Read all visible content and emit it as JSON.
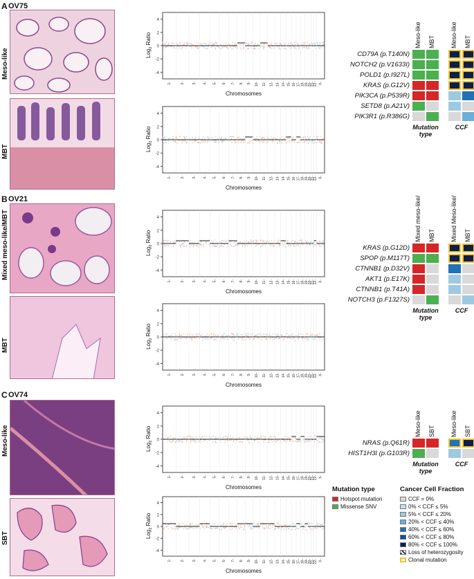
{
  "panels": [
    {
      "letter": "A",
      "case": "OV75"
    },
    {
      "letter": "B",
      "case": "OV21"
    },
    {
      "letter": "C",
      "case": "OV74"
    }
  ],
  "row_labels": [
    "Meso-like",
    "MBT",
    "Mixed meso-like/MBT",
    "MBT",
    "Meso-like",
    "SBT"
  ],
  "plot_labels": {
    "ylabel_base": "Log",
    "ylabel_sub": "2",
    "ylabel_rest": " Ratio",
    "xlabel": "Chromosomes",
    "yticks": [
      "4",
      "2",
      "0",
      "-2",
      "-4"
    ],
    "chromosomes": [
      "1",
      "2",
      "3",
      "4",
      "5",
      "6",
      "7",
      "8",
      "9",
      "10",
      "11",
      "12",
      "13",
      "14",
      "15",
      "16",
      "17",
      "18",
      "19",
      "20",
      "21",
      "22",
      "X"
    ]
  },
  "grids": {
    "A": {
      "mut_headers": [
        "Meso-like",
        "MBT"
      ],
      "ccf_headers": [
        "Meso-like",
        "MBT"
      ],
      "genes": [
        {
          "name": "CD79A (p.T140N)",
          "mut": [
            "missense",
            "missense"
          ],
          "ccf": [
            "c80",
            "c80"
          ],
          "clonal": [
            true,
            true
          ]
        },
        {
          "name": "NOTCH2 (p.V1633I)",
          "mut": [
            "missense",
            "missense"
          ],
          "ccf": [
            "c80",
            "c80"
          ],
          "clonal": [
            true,
            true
          ]
        },
        {
          "name": "POLD1 (p.I927L)",
          "mut": [
            "missense",
            "missense"
          ],
          "ccf": [
            "c80",
            "c80"
          ],
          "clonal": [
            true,
            true
          ]
        },
        {
          "name": "KRAS (p.G12V)",
          "mut": [
            "hotspot",
            "hotspot"
          ],
          "ccf": [
            "c80",
            "c80"
          ],
          "clonal": [
            true,
            true
          ]
        },
        {
          "name": "PIK3CA (p.P539R)",
          "mut": [
            "hotspot",
            "hotspot"
          ],
          "ccf": [
            "c5",
            "c40"
          ],
          "clonal": [
            false,
            false
          ]
        },
        {
          "name": "SETD8 (p.A21V)",
          "mut": [
            "missense",
            "none"
          ],
          "ccf": [
            "c5",
            "c0"
          ],
          "clonal": [
            false,
            false
          ]
        },
        {
          "name": "PIK3R1 (p.R386G)",
          "mut": [
            "none",
            "missense"
          ],
          "ccf": [
            "c0",
            "c20"
          ],
          "clonal": [
            false,
            false
          ]
        }
      ]
    },
    "B": {
      "mut_headers": [
        "Mixed meso-like/",
        "MBT"
      ],
      "ccf_headers": [
        "Mixed Meso-like/",
        "MBT"
      ],
      "genes": [
        {
          "name": "KRAS (p.G12D)",
          "mut": [
            "hotspot",
            "hotspot"
          ],
          "ccf": [
            "c80",
            "c80"
          ],
          "clonal": [
            true,
            true
          ]
        },
        {
          "name": "SPOP (p.M117T)",
          "mut": [
            "missense",
            "missense"
          ],
          "ccf": [
            "c80",
            "c80"
          ],
          "clonal": [
            true,
            true
          ]
        },
        {
          "name": "CTNNB1 (p.D32V)",
          "mut": [
            "hotspot",
            "none"
          ],
          "ccf": [
            "c40",
            "c0"
          ],
          "clonal": [
            false,
            false
          ]
        },
        {
          "name": "AKT1 (p.E17K)",
          "mut": [
            "hotspot",
            "none"
          ],
          "ccf": [
            "c5",
            "c0"
          ],
          "clonal": [
            false,
            false
          ]
        },
        {
          "name": "CTNNB1 (p.T41A)",
          "mut": [
            "hotspot",
            "none"
          ],
          "ccf": [
            "c5",
            "c0"
          ],
          "clonal": [
            false,
            false
          ]
        },
        {
          "name": "NOTCH3 (p.F1327S)",
          "mut": [
            "none",
            "missense"
          ],
          "ccf": [
            "c0",
            "c5"
          ],
          "clonal": [
            false,
            false
          ]
        }
      ]
    },
    "C": {
      "mut_headers": [
        "Meso-like",
        "SBT"
      ],
      "ccf_headers": [
        "Meso-like",
        "SBT"
      ],
      "genes": [
        {
          "name": "NRAS (p.Q61R)",
          "mut": [
            "hotspot",
            "hotspot"
          ],
          "ccf": [
            "c40",
            "c80"
          ],
          "clonal": [
            true,
            true
          ]
        },
        {
          "name": "HIST1H3I (p.G103R)",
          "mut": [
            "missense",
            "none"
          ],
          "ccf": [
            "c5",
            "c0"
          ],
          "clonal": [
            false,
            false
          ]
        }
      ]
    }
  },
  "grid_footer": {
    "mutation_type": "Mutation",
    "mutation_type2": "type",
    "ccf": "CCF"
  },
  "legend_mutation": {
    "title": "Mutation type",
    "items": [
      {
        "label": "Hotspot mutation",
        "color": "#d62728"
      },
      {
        "label": "Missense SNV",
        "color": "#4caf50"
      }
    ]
  },
  "legend_ccf": {
    "title": "Cancer Cell Fraction",
    "items": [
      {
        "label": "CCF = 0%",
        "color": "#d9d9d9"
      },
      {
        "label": "0% < CCF ≤  5%",
        "color": "#c6dbef"
      },
      {
        "label": "5% < CCF ≤  20%",
        "color": "#9ecae1"
      },
      {
        "label": "20% < CCF ≤  40%",
        "color": "#6baed6"
      },
      {
        "label": "40% < CCF ≤  60%",
        "color": "#2171b5"
      },
      {
        "label": "60% < CCF ≤  80%",
        "color": "#08519c"
      },
      {
        "label": "80% < CCF ≤  100%",
        "color": "#0b1f4b"
      },
      {
        "label": "Loss of heterozygosity",
        "color": "hatch"
      },
      {
        "label": "Clonal mutation",
        "color": "clonal"
      }
    ]
  },
  "colors": {
    "hotspot": "#d62728",
    "missense": "#4caf50",
    "none": "#d9d9d9",
    "c0": "#d9d9d9",
    "c5": "#9ecae1",
    "c20": "#6baed6",
    "c40": "#2171b5",
    "c60": "#08519c",
    "c80": "#0b1f4b",
    "clonal": "#f2c12e"
  }
}
